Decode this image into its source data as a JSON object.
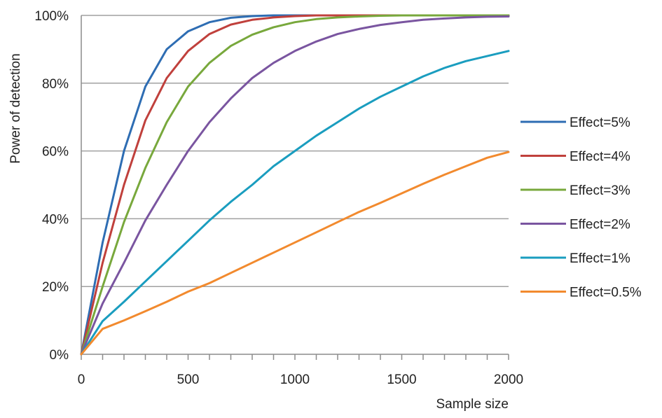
{
  "chart_data": {
    "type": "line",
    "title": "",
    "xlabel": "Sample size",
    "ylabel": "Power of detection",
    "xlim": [
      0,
      2000
    ],
    "ylim": [
      0,
      100
    ],
    "x_ticks": [
      0,
      500,
      1000,
      1500,
      2000
    ],
    "x_tick_labels": [
      "0",
      "500",
      "1000",
      "1500",
      "2000"
    ],
    "x_minor_step": 100,
    "y_ticks": [
      0,
      20,
      40,
      60,
      80,
      100
    ],
    "y_tick_labels": [
      "0%",
      "20%",
      "40%",
      "60%",
      "80%",
      "100%"
    ],
    "grid": "horizontal",
    "legend_position": "right",
    "x": [
      0,
      100,
      200,
      300,
      400,
      500,
      600,
      700,
      800,
      900,
      1000,
      1100,
      1200,
      1300,
      1400,
      1500,
      1600,
      1700,
      1800,
      1900,
      2000
    ],
    "series": [
      {
        "name": "Effect=5%",
        "color": "#2e6db3",
        "values": [
          0,
          33,
          60,
          79,
          90,
          95.3,
          98,
          99.3,
          99.8,
          100,
          100,
          100,
          100,
          100,
          100,
          100,
          100,
          100,
          100,
          100,
          100
        ]
      },
      {
        "name": "Effect=4%",
        "color": "#c0403c",
        "values": [
          0,
          27,
          50,
          69,
          81.5,
          89.5,
          94.5,
          97.3,
          98.7,
          99.4,
          99.8,
          100,
          100,
          100,
          100,
          100,
          100,
          100,
          100,
          100,
          100
        ]
      },
      {
        "name": "Effect=3%",
        "color": "#78a83c",
        "values": [
          0,
          20,
          39,
          55,
          68.5,
          79,
          86,
          91,
          94.3,
          96.5,
          98,
          98.9,
          99.4,
          99.7,
          99.9,
          100,
          100,
          100,
          100,
          100,
          100
        ]
      },
      {
        "name": "Effect=2%",
        "color": "#7a55a0",
        "values": [
          0,
          15,
          27,
          39.5,
          50,
          60,
          68.5,
          75.5,
          81.5,
          86,
          89.5,
          92.3,
          94.5,
          96,
          97.2,
          98,
          98.7,
          99.1,
          99.4,
          99.6,
          99.7
        ]
      },
      {
        "name": "Effect=1%",
        "color": "#1a9dbf",
        "values": [
          0,
          9.8,
          15.5,
          21.5,
          27.5,
          33.5,
          39.5,
          45,
          50,
          55.5,
          60,
          64.5,
          68.5,
          72.5,
          76,
          79,
          82,
          84.5,
          86.5,
          88,
          89.5
        ]
      },
      {
        "name": "Effect=0.5%",
        "color": "#f28a2e",
        "values": [
          0,
          7.5,
          10,
          12.7,
          15.5,
          18.5,
          21,
          24,
          27,
          30,
          33,
          36,
          39,
          42,
          44.7,
          47.5,
          50.3,
          53,
          55.5,
          58,
          59.7
        ]
      }
    ]
  }
}
